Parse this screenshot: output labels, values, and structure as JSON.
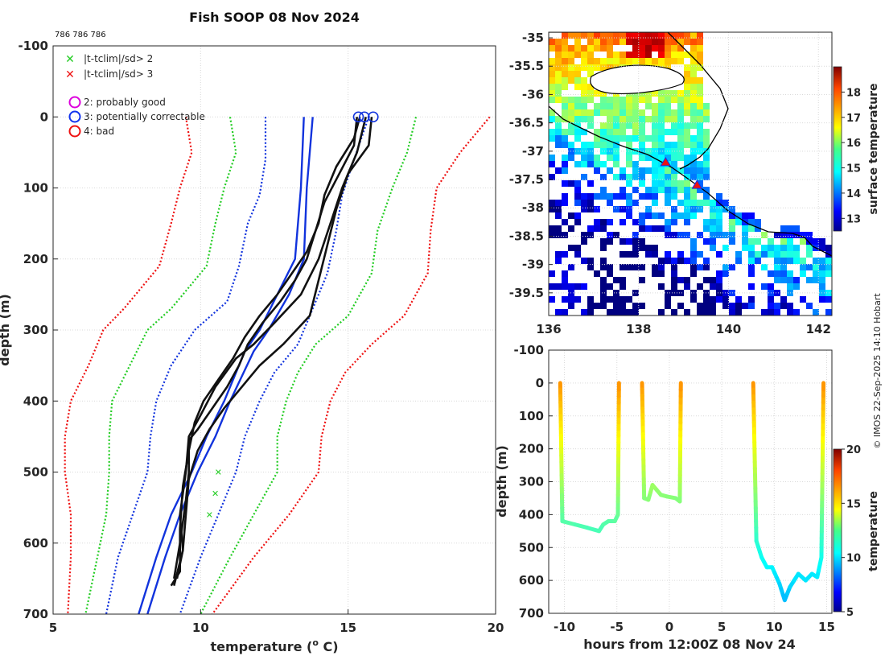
{
  "chart_data": [
    {
      "id": "profiles",
      "type": "line",
      "title": "Fish SOOP 08 Nov 2024",
      "note": "786 786 786",
      "xlabel": "temperature (",
      "xlabel_sup": "o",
      "xlabel_end": " C)",
      "ylabel": "depth (m)",
      "xlim": [
        5,
        20
      ],
      "ylim": [
        -100,
        700
      ],
      "xticks": [
        5,
        10,
        15,
        20
      ],
      "yticks": [
        -100,
        0,
        100,
        200,
        300,
        400,
        500,
        600,
        700
      ],
      "legend": [
        {
          "marker": "x",
          "color": "#22cc22",
          "label": "|t-tclim|/sd> 2"
        },
        {
          "marker": "x",
          "color": "#ee1111",
          "label": "|t-tclim|/sd> 3"
        },
        {
          "marker": "o",
          "color": "#dd00dd",
          "label": "2: probably good"
        },
        {
          "marker": "o",
          "color": "#1133ee",
          "label": "3: potentially correctable"
        },
        {
          "marker": "o",
          "color": "#ee1111",
          "label": "4: bad"
        }
      ],
      "climatology": [
        {
          "name": "clim-mean",
          "color": "#1133dd",
          "style": "solid",
          "points": [
            [
              13.5,
              0
            ],
            [
              13.4,
              100
            ],
            [
              13.2,
              200
            ],
            [
              12.6,
              250
            ],
            [
              12.0,
              300
            ],
            [
              11.5,
              330
            ],
            [
              10.8,
              400
            ],
            [
              10.2,
              450
            ],
            [
              9.7,
              500
            ],
            [
              9.0,
              560
            ],
            [
              8.5,
              620
            ],
            [
              7.9,
              700
            ]
          ]
        },
        {
          "name": "clim-mean-alt",
          "color": "#1133dd",
          "style": "solid",
          "points": [
            [
              13.8,
              0
            ],
            [
              13.6,
              100
            ],
            [
              13.5,
              200
            ],
            [
              13.0,
              250
            ],
            [
              12.3,
              300
            ],
            [
              11.8,
              330
            ],
            [
              11.0,
              400
            ],
            [
              10.5,
              450
            ],
            [
              9.9,
              500
            ],
            [
              9.3,
              560
            ],
            [
              8.8,
              620
            ],
            [
              8.2,
              700
            ]
          ]
        },
        {
          "name": "clim-1sd-left",
          "color": "#1133dd",
          "style": "dotted",
          "points": [
            [
              12.2,
              0
            ],
            [
              12.2,
              60
            ],
            [
              12.0,
              110
            ],
            [
              11.6,
              150
            ],
            [
              11.3,
              210
            ],
            [
              10.9,
              260
            ],
            [
              9.8,
              300
            ],
            [
              9.0,
              350
            ],
            [
              8.5,
              400
            ],
            [
              8.3,
              450
            ],
            [
              8.2,
              500
            ],
            [
              7.7,
              560
            ],
            [
              7.2,
              620
            ],
            [
              6.8,
              700
            ]
          ]
        },
        {
          "name": "clim-1sd-right",
          "color": "#1133dd",
          "style": "dotted",
          "points": [
            [
              15.7,
              0
            ],
            [
              15.2,
              60
            ],
            [
              14.8,
              110
            ],
            [
              14.6,
              160
            ],
            [
              14.3,
              220
            ],
            [
              13.8,
              270
            ],
            [
              13.3,
              320
            ],
            [
              12.5,
              360
            ],
            [
              12.0,
              400
            ],
            [
              11.5,
              450
            ],
            [
              11.2,
              500
            ],
            [
              10.6,
              560
            ],
            [
              10.0,
              620
            ],
            [
              9.3,
              700
            ]
          ]
        },
        {
          "name": "clim-2sd-left",
          "color": "#22cc22",
          "style": "dotted",
          "points": [
            [
              11.0,
              0
            ],
            [
              11.2,
              50
            ],
            [
              10.8,
              100
            ],
            [
              10.5,
              150
            ],
            [
              10.2,
              210
            ],
            [
              9.0,
              270
            ],
            [
              8.2,
              300
            ],
            [
              7.6,
              350
            ],
            [
              7.0,
              400
            ],
            [
              6.9,
              450
            ],
            [
              6.9,
              500
            ],
            [
              6.8,
              560
            ],
            [
              6.5,
              620
            ],
            [
              6.1,
              700
            ]
          ]
        },
        {
          "name": "clim-2sd-right",
          "color": "#22cc22",
          "style": "dotted",
          "points": [
            [
              17.3,
              0
            ],
            [
              17.0,
              50
            ],
            [
              16.5,
              100
            ],
            [
              16.0,
              160
            ],
            [
              15.8,
              220
            ],
            [
              15.0,
              280
            ],
            [
              13.9,
              320
            ],
            [
              13.3,
              360
            ],
            [
              12.9,
              400
            ],
            [
              12.6,
              450
            ],
            [
              12.6,
              500
            ],
            [
              11.8,
              560
            ],
            [
              11.0,
              620
            ],
            [
              10.0,
              700
            ]
          ]
        },
        {
          "name": "clim-3sd-left",
          "color": "#ee1111",
          "style": "dotted",
          "points": [
            [
              9.5,
              0
            ],
            [
              9.7,
              50
            ],
            [
              9.3,
              100
            ],
            [
              9.0,
              150
            ],
            [
              8.6,
              210
            ],
            [
              7.4,
              270
            ],
            [
              6.7,
              300
            ],
            [
              6.2,
              350
            ],
            [
              5.6,
              400
            ],
            [
              5.4,
              450
            ],
            [
              5.4,
              500
            ],
            [
              5.6,
              560
            ],
            [
              5.6,
              620
            ],
            [
              5.5,
              700
            ]
          ]
        },
        {
          "name": "clim-3sd-right",
          "color": "#ee1111",
          "style": "dotted",
          "points": [
            [
              19.8,
              0
            ],
            [
              18.8,
              50
            ],
            [
              18.0,
              100
            ],
            [
              17.8,
              160
            ],
            [
              17.7,
              220
            ],
            [
              16.9,
              280
            ],
            [
              15.8,
              320
            ],
            [
              14.9,
              360
            ],
            [
              14.4,
              400
            ],
            [
              14.1,
              450
            ],
            [
              14.0,
              500
            ],
            [
              13.0,
              560
            ],
            [
              11.8,
              620
            ],
            [
              10.4,
              700
            ]
          ]
        }
      ],
      "profiles": [
        {
          "name": "profile-1",
          "color": "#111111",
          "points": [
            [
              15.3,
              0
            ],
            [
              15.2,
              40
            ],
            [
              14.7,
              80
            ],
            [
              14.2,
              120
            ],
            [
              13.9,
              160
            ],
            [
              13.6,
              200
            ],
            [
              13.2,
              230
            ],
            [
              12.7,
              260
            ],
            [
              12.1,
              290
            ],
            [
              11.6,
              320
            ],
            [
              11.3,
              350
            ],
            [
              10.9,
              380
            ],
            [
              10.4,
              410
            ],
            [
              9.9,
              440
            ],
            [
              9.6,
              455
            ],
            [
              9.6,
              500
            ],
            [
              9.5,
              540
            ],
            [
              9.3,
              600
            ],
            [
              9.1,
              650
            ]
          ]
        },
        {
          "name": "profile-2",
          "color": "#111111",
          "points": [
            [
              15.4,
              0
            ],
            [
              15.2,
              30
            ],
            [
              14.6,
              70
            ],
            [
              14.2,
              110
            ],
            [
              14.0,
              150
            ],
            [
              13.6,
              190
            ],
            [
              13.1,
              220
            ],
            [
              12.6,
              250
            ],
            [
              12.0,
              280
            ],
            [
              11.5,
              310
            ],
            [
              11.1,
              340
            ],
            [
              10.6,
              370
            ],
            [
              10.1,
              400
            ],
            [
              9.8,
              430
            ],
            [
              9.6,
              470
            ],
            [
              9.4,
              520
            ],
            [
              9.3,
              580
            ],
            [
              9.3,
              640
            ],
            [
              9.0,
              660
            ]
          ]
        },
        {
          "name": "profile-3",
          "color": "#111111",
          "points": [
            [
              15.8,
              0
            ],
            [
              15.7,
              40
            ],
            [
              15.0,
              80
            ],
            [
              14.6,
              130
            ],
            [
              14.3,
              180
            ],
            [
              14.0,
              230
            ],
            [
              13.7,
              280
            ],
            [
              12.8,
              320
            ],
            [
              12.0,
              350
            ],
            [
              11.4,
              380
            ],
            [
              10.8,
              410
            ],
            [
              10.3,
              440
            ],
            [
              9.9,
              470
            ],
            [
              9.6,
              510
            ],
            [
              9.5,
              560
            ],
            [
              9.4,
              610
            ],
            [
              9.2,
              650
            ]
          ]
        },
        {
          "name": "profile-4",
          "color": "#111111",
          "points": [
            [
              15.6,
              0
            ],
            [
              15.3,
              50
            ],
            [
              14.8,
              100
            ],
            [
              14.4,
              150
            ],
            [
              14.0,
              200
            ],
            [
              13.4,
              250
            ],
            [
              12.5,
              290
            ],
            [
              11.8,
              320
            ],
            [
              11.2,
              340
            ],
            [
              10.5,
              380
            ],
            [
              10.0,
              420
            ],
            [
              9.6,
              450
            ],
            [
              9.5,
              500
            ],
            [
              9.3,
              560
            ],
            [
              9.4,
              610
            ],
            [
              9.1,
              660
            ]
          ]
        }
      ],
      "flag_points": [
        {
          "x": 15.35,
          "y": 0,
          "color": "#1133dd"
        },
        {
          "x": 15.55,
          "y": 0,
          "color": "#1133dd"
        },
        {
          "x": 15.85,
          "y": 0,
          "color": "#1133dd"
        }
      ],
      "exceed_points": [
        {
          "x": 10.6,
          "y": 500,
          "color": "#22cc22"
        },
        {
          "x": 10.5,
          "y": 530,
          "color": "#22cc22"
        },
        {
          "x": 10.3,
          "y": 560,
          "color": "#22cc22"
        }
      ]
    },
    {
      "id": "sst-map",
      "type": "heatmap",
      "xlim": [
        136,
        142.3
      ],
      "ylim": [
        -39.9,
        -34.9
      ],
      "xticks": [
        136,
        138,
        140,
        142
      ],
      "yticks": [
        -35,
        -35.5,
        -36,
        -36.5,
        -37,
        -37.5,
        -38,
        -38.5,
        -39,
        -39.5
      ],
      "colorbar_label": "surface temperature",
      "colorbar_range": [
        12.5,
        19
      ],
      "colorbar_ticks": [
        13,
        14,
        15,
        16,
        17,
        18
      ],
      "markers": [
        {
          "lon": 138.6,
          "lat": -37.2,
          "color": "#ee1111"
        },
        {
          "lon": 139.3,
          "lat": -37.6,
          "color": "#ee1111"
        }
      ]
    },
    {
      "id": "depth-time",
      "type": "line",
      "xlabel": "hours from 12:00Z 08 Nov 24",
      "ylabel": "depth (m)",
      "xlim": [
        -11.5,
        15.5
      ],
      "ylim": [
        -100,
        700
      ],
      "xticks": [
        -10,
        -5,
        0,
        5,
        10,
        15
      ],
      "yticks": [
        -100,
        0,
        100,
        200,
        300,
        400,
        500,
        600,
        700
      ],
      "colorbar_label": "temperature",
      "colorbar_range": [
        5,
        20
      ],
      "colorbar_ticks": [
        5,
        10,
        15,
        20
      ],
      "segments": [
        {
          "name": "drop-1",
          "points": [
            [
              -10.4,
              0
            ],
            [
              -10.2,
              420
            ],
            [
              -9.0,
              430
            ],
            [
              -7.8,
              440
            ],
            [
              -6.7,
              450
            ],
            [
              -6.3,
              430
            ],
            [
              -5.8,
              420
            ],
            [
              -5.2,
              420
            ],
            [
              -4.9,
              400
            ],
            [
              -4.8,
              0
            ]
          ]
        },
        {
          "name": "drop-2",
          "points": [
            [
              -2.6,
              0
            ],
            [
              -2.4,
              350
            ],
            [
              -2.0,
              355
            ],
            [
              -1.6,
              310
            ],
            [
              -0.8,
              340
            ],
            [
              -0.2,
              345
            ],
            [
              0.6,
              350
            ],
            [
              1.0,
              360
            ],
            [
              1.1,
              0
            ]
          ]
        },
        {
          "name": "drop-3",
          "points": [
            [
              8.0,
              0
            ],
            [
              8.3,
              480
            ],
            [
              8.8,
              530
            ],
            [
              9.3,
              560
            ],
            [
              9.8,
              560
            ],
            [
              10.5,
              610
            ],
            [
              11.0,
              660
            ],
            [
              11.5,
              620
            ],
            [
              12.3,
              580
            ],
            [
              13.0,
              600
            ],
            [
              13.6,
              580
            ],
            [
              14.1,
              590
            ],
            [
              14.5,
              530
            ],
            [
              14.7,
              0
            ]
          ]
        }
      ]
    }
  ],
  "credit": "© IMOS 22-Sep-2025 14:10 Hobart"
}
